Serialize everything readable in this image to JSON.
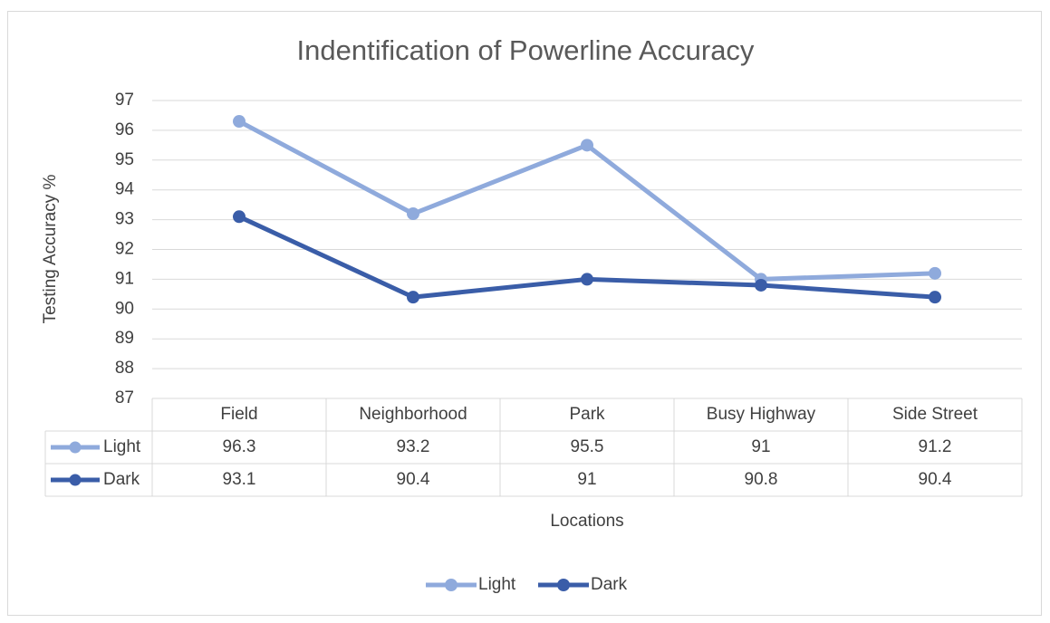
{
  "chart_data": {
    "type": "line",
    "title": "Indentification of Powerline Accuracy",
    "y_label": "Testing Accuracy %",
    "x_label": "Locations",
    "categories": [
      "Field",
      "Neighborhood",
      "Park",
      "Busy Highway",
      "Side Street"
    ],
    "series": [
      {
        "name": "Light",
        "color": "#8FAADC",
        "values": [
          96.3,
          93.2,
          95.5,
          91,
          91.2
        ]
      },
      {
        "name": "Dark",
        "color": "#3A5DA8",
        "values": [
          93.1,
          90.4,
          91,
          90.8,
          90.4
        ]
      }
    ],
    "ylim": [
      87,
      97
    ],
    "yticks": [
      87,
      88,
      89,
      90,
      91,
      92,
      93,
      94,
      95,
      96,
      97
    ],
    "grid": true,
    "legend": "bottom",
    "data_table": true
  }
}
